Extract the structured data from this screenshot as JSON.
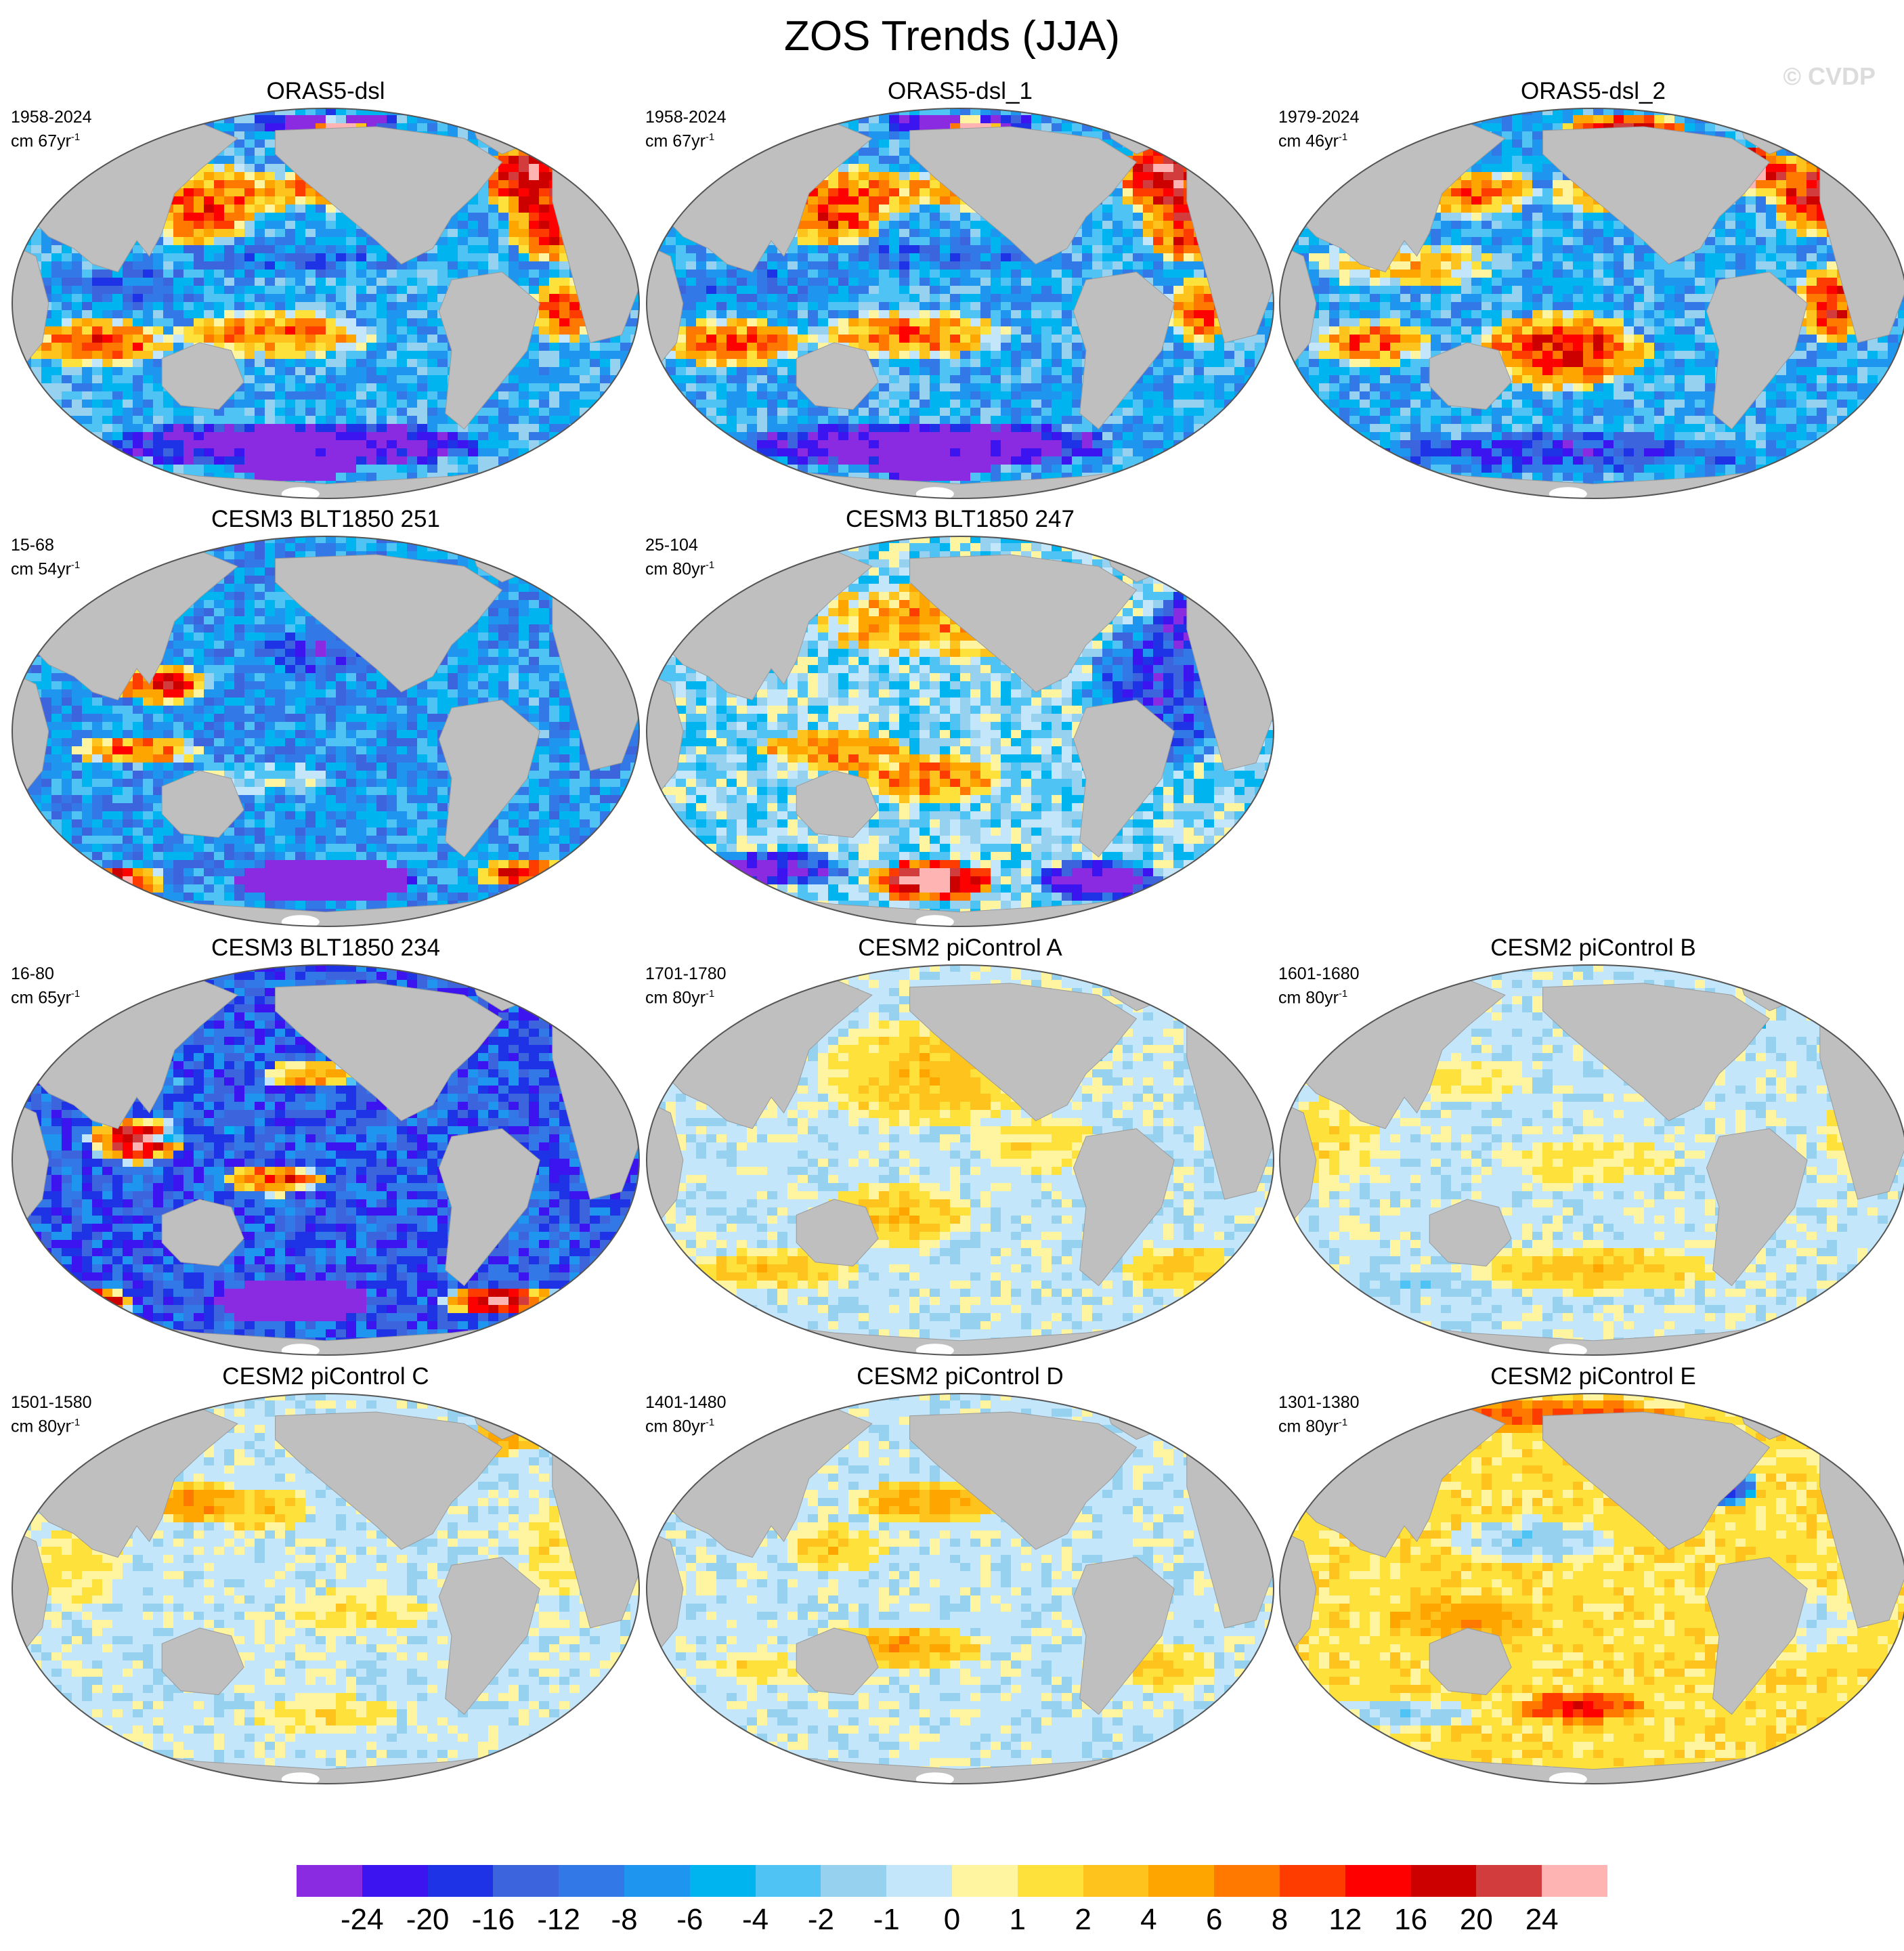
{
  "title": "ZOS Trends (JJA)",
  "watermark": "© CVDP",
  "colorbar": {
    "colors": [
      "#8a2be2",
      "#3b14f0",
      "#1e32e6",
      "#3c64dc",
      "#3278e6",
      "#1e96f0",
      "#00b4f0",
      "#50c3f5",
      "#96d2f0",
      "#c3e6fa",
      "#fff5a0",
      "#ffe13c",
      "#ffc31e",
      "#ffa500",
      "#ff7800",
      "#ff3c00",
      "#ff0000",
      "#cd0000",
      "#d23c3c",
      "#ffb4b4"
    ],
    "labels": [
      "-24",
      "-20",
      "-16",
      "-12",
      "-8",
      "-6",
      "-4",
      "-2",
      "-1",
      "0",
      "1",
      "2",
      "4",
      "6",
      "8",
      "12",
      "16",
      "20",
      "24"
    ]
  },
  "panels": [
    {
      "id": "p1",
      "title": "ORAS5-dsl",
      "period": "1958-2024",
      "units": "cm 67yr",
      "sup": "-1",
      "pattern": "obs1"
    },
    {
      "id": "p2",
      "title": "ORAS5-dsl_1",
      "period": "1958-2024",
      "units": "cm 67yr",
      "sup": "-1",
      "pattern": "obs1"
    },
    {
      "id": "p3",
      "title": "ORAS5-dsl_2",
      "period": "1979-2024",
      "units": "cm 46yr",
      "sup": "-1",
      "pattern": "obs2"
    },
    {
      "id": "p4",
      "title": "CESM3 BLT1850 251",
      "period": "15-68",
      "units": "cm 54yr",
      "sup": "-1",
      "pattern": "blt251"
    },
    {
      "id": "p5",
      "title": "CESM3 BLT1850 247",
      "period": "25-104",
      "units": "cm 80yr",
      "sup": "-1",
      "pattern": "blt247"
    },
    {
      "id": "p6",
      "title": "CESM3 BLT1850 234",
      "period": "16-80",
      "units": "cm 65yr",
      "sup": "-1",
      "pattern": "blt234"
    },
    {
      "id": "p7",
      "title": "CESM2 piControl A",
      "period": "1701-1780",
      "units": "cm 80yr",
      "sup": "-1",
      "pattern": "picA"
    },
    {
      "id": "p8",
      "title": "CESM2 piControl B",
      "period": "1601-1680",
      "units": "cm 80yr",
      "sup": "-1",
      "pattern": "picB"
    },
    {
      "id": "p9",
      "title": "CESM2 piControl C",
      "period": "1501-1580",
      "units": "cm 80yr",
      "sup": "-1",
      "pattern": "picC"
    },
    {
      "id": "p10",
      "title": "CESM2 piControl D",
      "period": "1401-1480",
      "units": "cm 80yr",
      "sup": "-1",
      "pattern": "picD"
    },
    {
      "id": "p11",
      "title": "CESM2 piControl E",
      "period": "1301-1380",
      "units": "cm 80yr",
      "sup": "-1",
      "pattern": "picE"
    }
  ]
}
